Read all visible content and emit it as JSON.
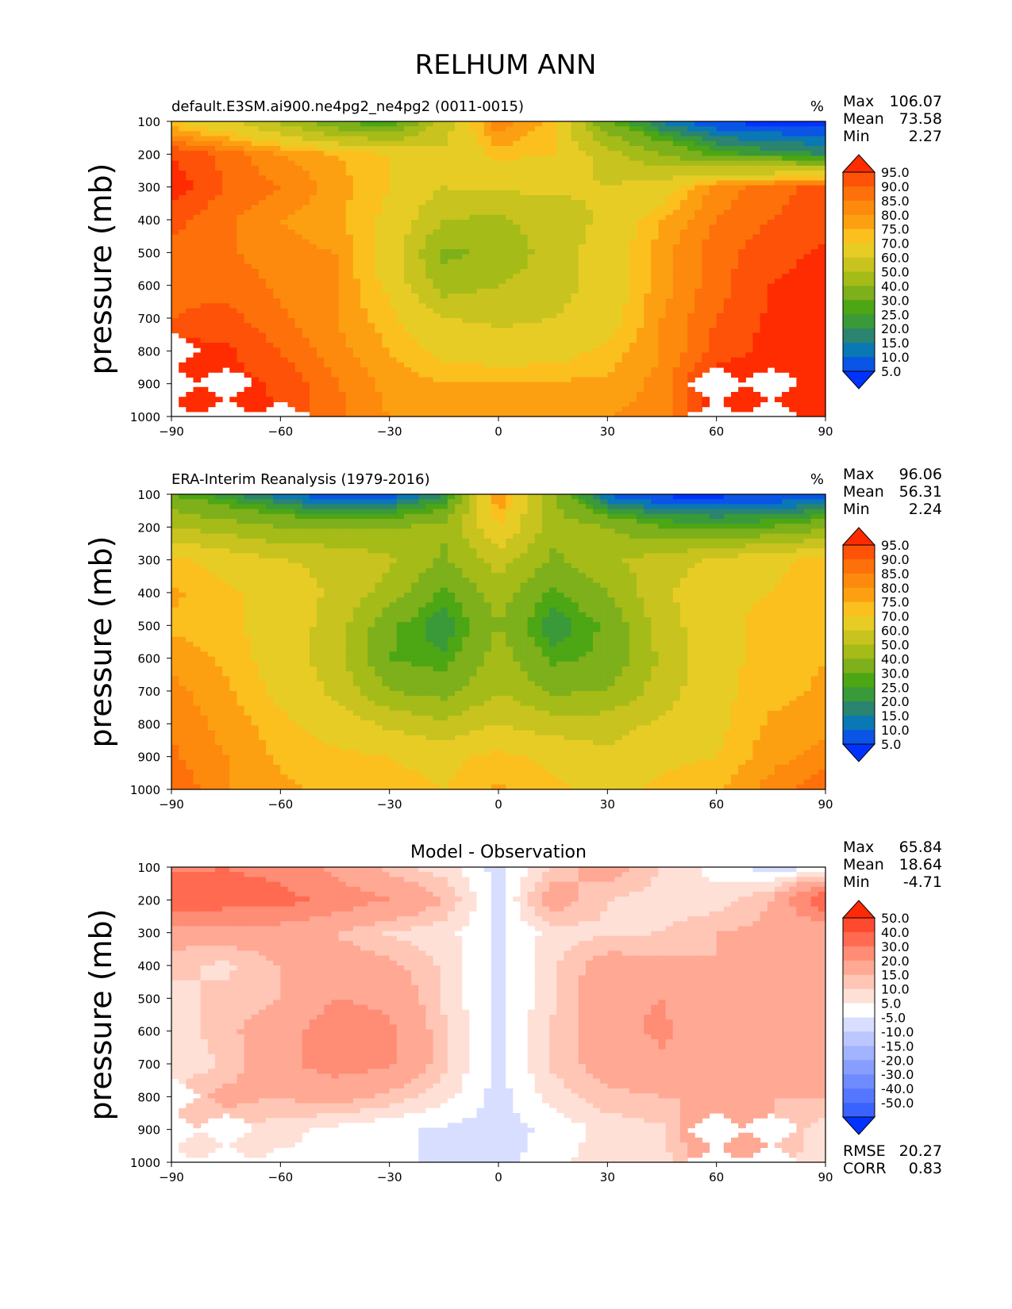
{
  "title": "RELHUM ANN",
  "ylabel": "pressure (mb)",
  "units": "%",
  "colors": {
    "abs_levels": [
      "#0033ff",
      "#0a55e6",
      "#0a78b4",
      "#2a8470",
      "#3a9a3a",
      "#4da614",
      "#7db01a",
      "#a5bb18",
      "#c8c31e",
      "#e8cc26",
      "#fbc01e",
      "#fca012",
      "#fd8a0c",
      "#fd700a",
      "#fd5208",
      "#fe2c00"
    ],
    "diff_levels": [
      "#0033ff",
      "#3a62ff",
      "#5577ff",
      "#6e8cff",
      "#889eff",
      "#a2b3ff",
      "#bcc7ff",
      "#d8deff",
      "#ffffff",
      "#ffe0d6",
      "#ffc6b6",
      "#ffa894",
      "#ff8c74",
      "#ff6a50",
      "#ff4a30",
      "#ff2a05"
    ]
  },
  "chart_data": [
    {
      "type": "heatmap",
      "title": "default.E3SM.ai900.ne4pg2_ne4pg2 (0011-0015)",
      "units": "%",
      "xlabel": "",
      "ylabel": "pressure (mb)",
      "xlim": [
        -90,
        90
      ],
      "ylim": [
        1000,
        100
      ],
      "x_ticks": [
        "−90",
        "−60",
        "−30",
        "0",
        "30",
        "60",
        "90"
      ],
      "y_ticks": [
        "100",
        "200",
        "300",
        "400",
        "500",
        "600",
        "700",
        "800",
        "900",
        "1000"
      ],
      "stats": [
        {
          "label": "Max",
          "value": "106.07"
        },
        {
          "label": "Mean",
          "value": "73.58"
        },
        {
          "label": "Min",
          "value": "2.27"
        }
      ],
      "colorbar_labels": [
        "95.0",
        "90.0",
        "85.0",
        "80.0",
        "75.0",
        "70.0",
        "60.0",
        "50.0",
        "40.0",
        "30.0",
        "25.0",
        "20.0",
        "15.0",
        "10.0",
        "5.0"
      ],
      "x": [
        -90,
        -75,
        -60,
        -45,
        -30,
        -15,
        0,
        15,
        30,
        45,
        60,
        75,
        90
      ],
      "y": [
        100,
        200,
        300,
        400,
        500,
        600,
        700,
        800,
        900,
        1000
      ],
      "z": [
        [
          70,
          62,
          48,
          30,
          22,
          55,
          85,
          72,
          30,
          14,
          4,
          3,
          3
        ],
        [
          95,
          88,
          80,
          75,
          70,
          62,
          72,
          70,
          55,
          40,
          28,
          22,
          20
        ],
        [
          98,
          90,
          85,
          78,
          70,
          60,
          62,
          62,
          60,
          65,
          82,
          88,
          92
        ],
        [
          92,
          86,
          80,
          76,
          68,
          50,
          48,
          55,
          62,
          75,
          85,
          90,
          93
        ],
        [
          88,
          86,
          82,
          80,
          66,
          38,
          42,
          55,
          65,
          78,
          88,
          93,
          96
        ],
        [
          88,
          88,
          84,
          80,
          68,
          45,
          50,
          55,
          65,
          78,
          88,
          95,
          97
        ],
        [
          90,
          92,
          86,
          80,
          72,
          60,
          58,
          60,
          66,
          80,
          90,
          96,
          98
        ],
        [
          98,
          96,
          90,
          82,
          75,
          68,
          65,
          66,
          72,
          80,
          92,
          97,
          98
        ],
        [
          100,
          97,
          94,
          86,
          78,
          75,
          76,
          76,
          76,
          82,
          100,
          97,
          98
        ],
        [
          100,
          98,
          95,
          86,
          80,
          78,
          78,
          78,
          80,
          82,
          100,
          98,
          98
        ]
      ],
      "missing": [
        [
          800,
          -90
        ],
        [
          900,
          -90
        ],
        [
          1000,
          -90
        ],
        [
          900,
          -75
        ],
        [
          1000,
          -75
        ],
        [
          1000,
          -60
        ],
        [
          900,
          60
        ],
        [
          1000,
          60
        ],
        [
          900,
          75
        ],
        [
          1000,
          75
        ]
      ]
    },
    {
      "type": "heatmap",
      "title": "ERA-Interim Reanalysis (1979-2016)",
      "units": "%",
      "xlabel": "",
      "ylabel": "pressure (mb)",
      "xlim": [
        -90,
        90
      ],
      "ylim": [
        1000,
        100
      ],
      "x_ticks": [
        "−90",
        "−60",
        "−30",
        "0",
        "30",
        "60",
        "90"
      ],
      "y_ticks": [
        "100",
        "200",
        "300",
        "400",
        "500",
        "600",
        "700",
        "800",
        "900",
        "1000"
      ],
      "stats": [
        {
          "label": "Max",
          "value": "96.06"
        },
        {
          "label": "Mean",
          "value": "56.31"
        },
        {
          "label": "Min",
          "value": "2.24"
        }
      ],
      "colorbar_labels": [
        "95.0",
        "90.0",
        "85.0",
        "80.0",
        "75.0",
        "70.0",
        "60.0",
        "50.0",
        "40.0",
        "30.0",
        "25.0",
        "20.0",
        "15.0",
        "10.0",
        "5.0"
      ],
      "x": [
        -90,
        -75,
        -60,
        -45,
        -30,
        -15,
        0,
        15,
        30,
        45,
        60,
        75,
        90
      ],
      "y": [
        100,
        200,
        300,
        400,
        500,
        600,
        700,
        800,
        900,
        1000
      ],
      "z": [
        [
          30,
          22,
          12,
          3,
          5,
          20,
          82,
          40,
          8,
          3,
          3,
          4,
          3
        ],
        [
          50,
          45,
          40,
          38,
          40,
          42,
          70,
          45,
          40,
          30,
          28,
          30,
          38
        ],
        [
          72,
          66,
          60,
          58,
          52,
          38,
          55,
          38,
          48,
          55,
          62,
          68,
          72
        ],
        [
          76,
          72,
          66,
          58,
          46,
          28,
          45,
          28,
          40,
          58,
          68,
          70,
          75
        ],
        [
          74,
          72,
          66,
          56,
          32,
          20,
          40,
          20,
          32,
          55,
          68,
          72,
          75
        ],
        [
          78,
          74,
          66,
          55,
          30,
          26,
          45,
          28,
          32,
          52,
          68,
          72,
          75
        ],
        [
          82,
          76,
          68,
          58,
          40,
          36,
          50,
          38,
          40,
          55,
          68,
          73,
          76
        ],
        [
          84,
          78,
          72,
          66,
          58,
          52,
          60,
          55,
          55,
          62,
          68,
          76,
          78
        ],
        [
          86,
          80,
          74,
          72,
          70,
          68,
          72,
          68,
          62,
          68,
          70,
          78,
          82
        ],
        [
          90,
          80,
          76,
          74,
          72,
          70,
          76,
          72,
          66,
          72,
          74,
          82,
          90
        ]
      ],
      "missing": []
    },
    {
      "type": "heatmap",
      "title": "Model - Observation",
      "units": "",
      "xlabel": "",
      "ylabel": "pressure (mb)",
      "xlim": [
        -90,
        90
      ],
      "ylim": [
        1000,
        100
      ],
      "x_ticks": [
        "−90",
        "−60",
        "−30",
        "0",
        "30",
        "60",
        "90"
      ],
      "y_ticks": [
        "100",
        "200",
        "300",
        "400",
        "500",
        "600",
        "700",
        "800",
        "900",
        "1000"
      ],
      "stats": [
        {
          "label": "Max",
          "value": "65.84"
        },
        {
          "label": "Mean",
          "value": "18.64"
        },
        {
          "label": "Min",
          "value": "-4.71"
        }
      ],
      "bottom_stats": [
        {
          "label": "RMSE",
          "value": "20.27"
        },
        {
          "label": "CORR",
          "value": "0.83"
        }
      ],
      "colorbar_labels": [
        "50.0",
        "40.0",
        "30.0",
        "20.0",
        "15.0",
        "10.0",
        "5.0",
        "-5.0",
        "-10.0",
        "-15.0",
        "-20.0",
        "-30.0",
        "-40.0",
        "-50.0"
      ],
      "x": [
        -90,
        -75,
        -60,
        -45,
        -30,
        -15,
        0,
        15,
        30,
        45,
        60,
        75,
        90
      ],
      "y": [
        100,
        200,
        300,
        400,
        500,
        600,
        700,
        800,
        900,
        1000
      ],
      "z": [
        [
          38,
          40,
          36,
          28,
          17,
          12,
          3,
          15,
          25,
          15,
          8,
          2,
          3
        ],
        [
          48,
          46,
          44,
          36,
          30,
          20,
          3,
          25,
          15,
          12,
          12,
          20,
          50
        ],
        [
          24,
          24,
          25,
          20,
          14,
          12,
          4,
          12,
          14,
          15,
          20,
          22,
          22
        ],
        [
          16,
          14,
          20,
          24,
          22,
          14,
          4,
          14,
          24,
          22,
          20,
          20,
          20
        ],
        [
          14,
          16,
          20,
          30,
          28,
          14,
          3,
          14,
          28,
          30,
          22,
          20,
          20
        ],
        [
          12,
          18,
          26,
          36,
          32,
          16,
          3,
          16,
          26,
          32,
          22,
          20,
          20
        ],
        [
          10,
          16,
          28,
          34,
          32,
          16,
          3,
          16,
          24,
          28,
          22,
          20,
          20
        ],
        [
          16,
          22,
          20,
          24,
          18,
          12,
          3,
          12,
          18,
          20,
          20,
          20,
          20
        ],
        [
          14,
          16,
          12,
          8,
          6,
          4,
          3,
          6,
          12,
          14,
          30,
          20,
          12
        ],
        [
          10,
          14,
          10,
          6,
          6,
          4,
          3,
          8,
          14,
          12,
          30,
          20,
          10
        ]
      ],
      "missing": [
        [
          800,
          -90
        ],
        [
          900,
          -90
        ],
        [
          1000,
          -90
        ],
        [
          900,
          -75
        ],
        [
          1000,
          -75
        ],
        [
          1000,
          -60
        ],
        [
          900,
          60
        ],
        [
          1000,
          60
        ],
        [
          900,
          75
        ],
        [
          1000,
          75
        ]
      ]
    }
  ]
}
